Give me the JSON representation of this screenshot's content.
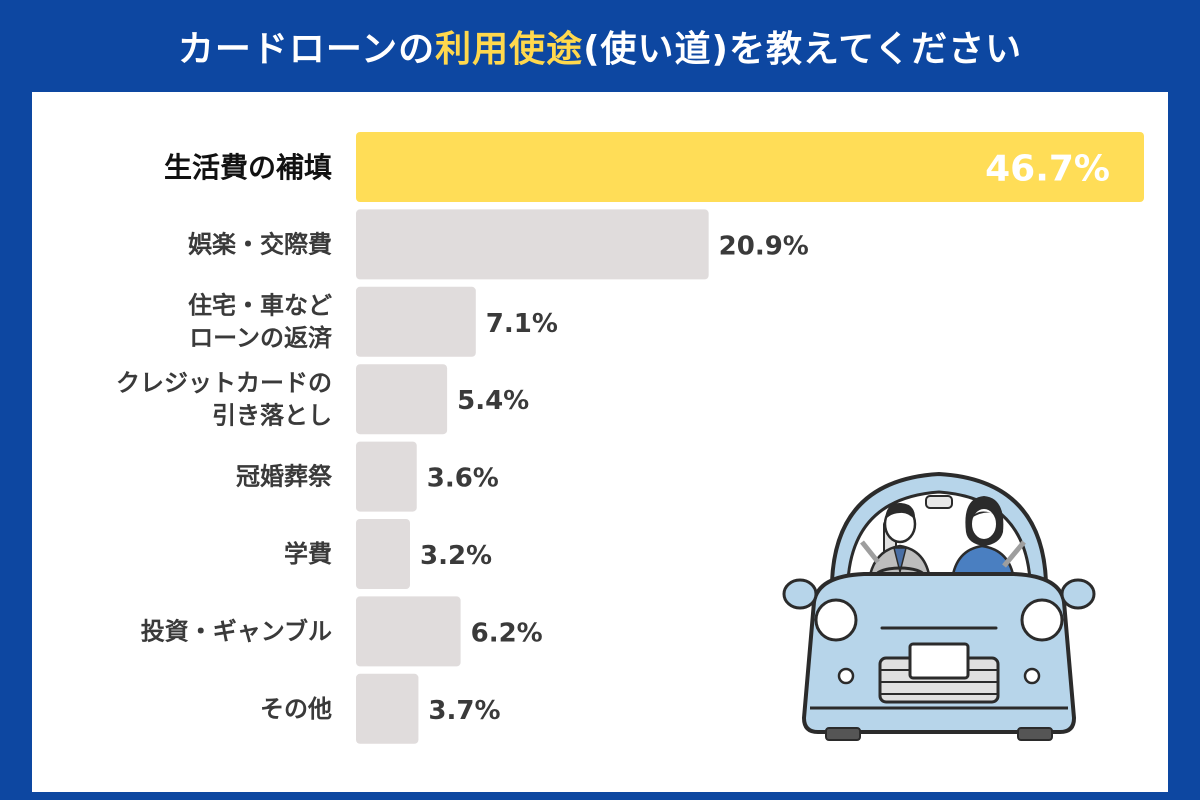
{
  "title": {
    "prefix": "カードローンの",
    "highlight": "利用使途",
    "suffix": "(使い道)を教えてください"
  },
  "colors": {
    "frame": "#0d47a1",
    "highlight_text": "#ffd84d",
    "top_bar": "#ffdd57",
    "bar": "#e0dcdc",
    "label": "#3a3a3a",
    "car_body": "#b7d5ea",
    "car_outline": "#2b2b2b"
  },
  "chart_data": {
    "type": "bar",
    "orientation": "horizontal",
    "categories": [
      [
        "生活費の補填"
      ],
      [
        "娯楽・交際費"
      ],
      [
        "住宅・車など",
        "ローンの返済"
      ],
      [
        "クレジットカードの",
        "引き落とし"
      ],
      [
        "冠婚葬祭"
      ],
      [
        "学費"
      ],
      [
        "投資・ギャンブル"
      ],
      [
        "その他"
      ]
    ],
    "values": [
      46.7,
      20.9,
      7.1,
      5.4,
      3.6,
      3.2,
      6.2,
      3.7
    ],
    "value_labels": [
      "46.7%",
      "20.9%",
      "7.1%",
      "5.4%",
      "3.6%",
      "3.2%",
      "6.2%",
      "3.7%"
    ],
    "xlim": [
      0,
      46.7
    ],
    "grid": false,
    "legend": "none"
  },
  "illustration": {
    "icon": "car-with-couple-icon"
  }
}
